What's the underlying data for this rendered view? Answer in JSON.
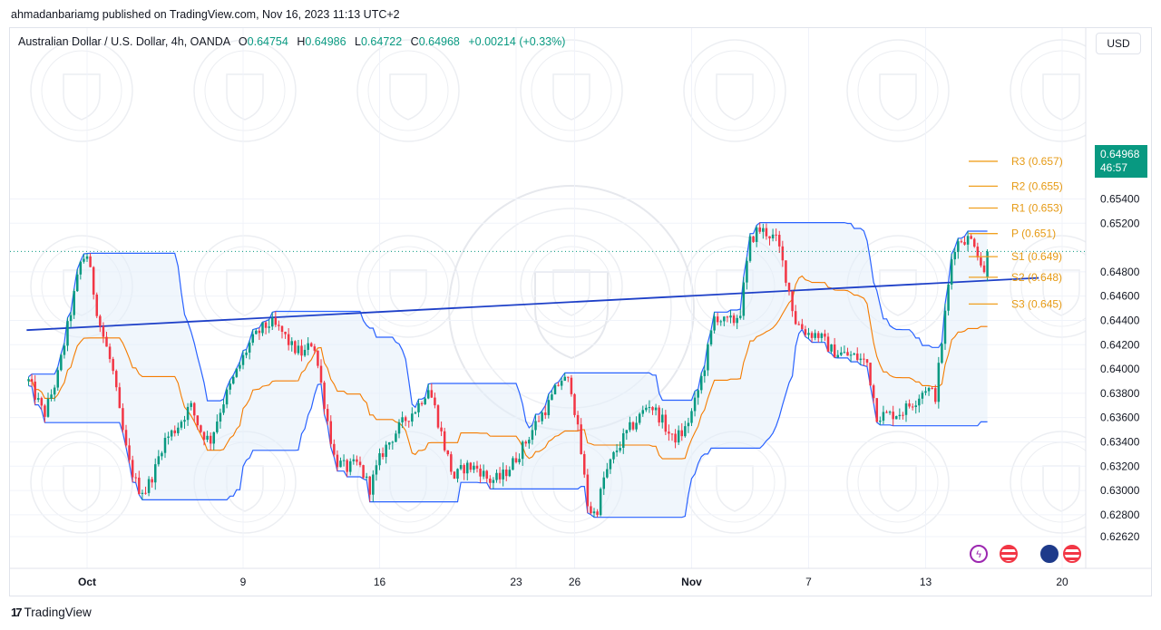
{
  "header": {
    "published": "ahmadanbariamg published on TradingView.com, Nov 16, 2023 11:13 UTC+2"
  },
  "legend": {
    "symbol": "Australian Dollar / U.S. Dollar, 4h, OANDA",
    "o_label": "O",
    "o_value": "0.64754",
    "h_label": "H",
    "h_value": "0.64986",
    "l_label": "L",
    "l_value": "0.64722",
    "c_label": "C",
    "c_value": "0.64968",
    "change": "+0.00214 (+0.33%)"
  },
  "currency_button": "USD",
  "last_price": {
    "value": "0.64968",
    "countdown": "46:57"
  },
  "footer": {
    "brand": "TradingView",
    "brand_mark": "17"
  },
  "icons": {
    "lightning": "lightning-icon",
    "us_flag": "us-flag-icon",
    "au_flag": "au-flag-icon"
  },
  "colors": {
    "up": "#089981",
    "down": "#f23645",
    "channel_line": "#2962ff",
    "channel_fill": "#e3effa",
    "baseline": "#f57c00",
    "trendline": "#1e40c8",
    "pivot": "#f0a020",
    "badge": "#089981"
  },
  "chart_data": {
    "type": "candlestick",
    "timeframe": "4h",
    "y_axis": {
      "min": 0.6255,
      "max": 0.6588,
      "ticks": [
        "0.62620",
        "0.62800",
        "0.63000",
        "0.63200",
        "0.63400",
        "0.63600",
        "0.63800",
        "0.64000",
        "0.64200",
        "0.64400",
        "0.64600",
        "0.64800",
        "0.65200",
        "0.65400"
      ]
    },
    "x_axis": {
      "ticks": [
        {
          "label": "Oct",
          "day": 0
        },
        {
          "label": "9",
          "day": 8
        },
        {
          "label": "16",
          "day": 15
        },
        {
          "label": "23",
          "day": 22
        },
        {
          "label": "26",
          "day": 25
        },
        {
          "label": "Nov",
          "day": 31
        },
        {
          "label": "7",
          "day": 37
        },
        {
          "label": "13",
          "day": 43
        },
        {
          "label": "20",
          "day": 50
        }
      ]
    },
    "pivot_levels": [
      {
        "label": "R3 (0.657)",
        "value": 0.6571
      },
      {
        "label": "R2 (0.655)",
        "value": 0.65505
      },
      {
        "label": "R1 (0.653)",
        "value": 0.65325
      },
      {
        "label": "P (0.651)",
        "value": 0.65115
      },
      {
        "label": "S1 (0.649)",
        "value": 0.64925
      },
      {
        "label": "S2 (0.648)",
        "value": 0.64755
      },
      {
        "label": "S3 (0.645)",
        "value": 0.64535
      }
    ],
    "trendline": {
      "from": {
        "day": -3.1,
        "price": 0.6432
      },
      "to": {
        "day": 48.8,
        "price": 0.6475
      }
    },
    "close_path": [
      [
        -3.0,
        0.639
      ],
      [
        -2.2,
        0.6362
      ],
      [
        -1.5,
        0.6395
      ],
      [
        -0.8,
        0.645
      ],
      [
        -0.3,
        0.649
      ],
      [
        0.0,
        0.6494
      ],
      [
        0.6,
        0.644
      ],
      [
        1.3,
        0.64
      ],
      [
        1.7,
        0.636
      ],
      [
        2.1,
        0.6325
      ],
      [
        2.6,
        0.6302
      ],
      [
        3.0,
        0.63
      ],
      [
        3.5,
        0.6318
      ],
      [
        3.9,
        0.634
      ],
      [
        4.6,
        0.6352
      ],
      [
        5.3,
        0.637
      ],
      [
        5.8,
        0.635
      ],
      [
        6.3,
        0.634
      ],
      [
        6.9,
        0.637
      ],
      [
        7.6,
        0.6395
      ],
      [
        8.3,
        0.642
      ],
      [
        8.9,
        0.6432
      ],
      [
        9.4,
        0.6438
      ],
      [
        10.0,
        0.643
      ],
      [
        10.5,
        0.6418
      ],
      [
        11.1,
        0.6412
      ],
      [
        11.6,
        0.6424
      ],
      [
        12.3,
        0.636
      ],
      [
        12.7,
        0.6325
      ],
      [
        13.3,
        0.6318
      ],
      [
        13.9,
        0.6322
      ],
      [
        14.5,
        0.6302
      ],
      [
        15.1,
        0.633
      ],
      [
        15.7,
        0.6345
      ],
      [
        16.4,
        0.636
      ],
      [
        16.9,
        0.6368
      ],
      [
        17.5,
        0.6385
      ],
      [
        17.8,
        0.637
      ],
      [
        18.3,
        0.6338
      ],
      [
        18.8,
        0.631
      ],
      [
        19.4,
        0.632
      ],
      [
        20.1,
        0.6318
      ],
      [
        20.6,
        0.6308
      ],
      [
        21.2,
        0.631
      ],
      [
        21.8,
        0.6322
      ],
      [
        22.5,
        0.634
      ],
      [
        23.0,
        0.6355
      ],
      [
        23.7,
        0.6372
      ],
      [
        24.3,
        0.6392
      ],
      [
        24.8,
        0.6388
      ],
      [
        25.3,
        0.6335
      ],
      [
        25.7,
        0.6285
      ],
      [
        26.1,
        0.628
      ],
      [
        26.5,
        0.631
      ],
      [
        27.1,
        0.6332
      ],
      [
        27.7,
        0.6348
      ],
      [
        28.3,
        0.636
      ],
      [
        28.8,
        0.6372
      ],
      [
        29.4,
        0.636
      ],
      [
        30.0,
        0.6342
      ],
      [
        30.6,
        0.6348
      ],
      [
        31.1,
        0.6368
      ],
      [
        31.7,
        0.6405
      ],
      [
        32.2,
        0.6445
      ],
      [
        32.7,
        0.6438
      ],
      [
        33.2,
        0.644
      ],
      [
        33.5,
        0.6448
      ],
      [
        34.0,
        0.6505
      ],
      [
        34.4,
        0.6515
      ],
      [
        34.9,
        0.6512
      ],
      [
        35.4,
        0.6505
      ],
      [
        35.9,
        0.6472
      ],
      [
        36.3,
        0.644
      ],
      [
        36.9,
        0.643
      ],
      [
        37.5,
        0.6428
      ],
      [
        38.2,
        0.6415
      ],
      [
        38.8,
        0.6412
      ],
      [
        39.4,
        0.641
      ],
      [
        40.0,
        0.6405
      ],
      [
        40.5,
        0.6362
      ],
      [
        41.1,
        0.6362
      ],
      [
        41.8,
        0.6365
      ],
      [
        42.5,
        0.6375
      ],
      [
        43.0,
        0.6385
      ],
      [
        43.5,
        0.6378
      ],
      [
        44.0,
        0.6445
      ],
      [
        44.4,
        0.65
      ],
      [
        44.9,
        0.6508
      ],
      [
        45.5,
        0.6505
      ],
      [
        46.0,
        0.6478
      ],
      [
        46.2,
        0.6497
      ]
    ]
  }
}
